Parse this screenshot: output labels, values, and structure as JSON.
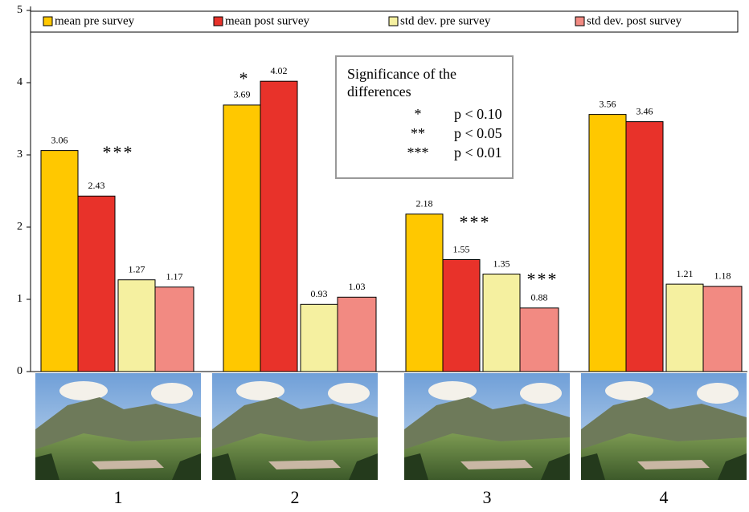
{
  "chart_data": {
    "type": "bar",
    "categories": [
      "1",
      "2",
      "3",
      "4"
    ],
    "series": [
      {
        "name": "mean pre survey",
        "color": "#ffc800",
        "values": [
          3.06,
          3.69,
          2.18,
          3.56
        ]
      },
      {
        "name": "mean post survey",
        "color": "#e8322a",
        "values": [
          2.43,
          4.02,
          1.55,
          3.46
        ]
      },
      {
        "name": "std dev. pre survey",
        "color": "#f5f0a0",
        "values": [
          1.27,
          0.93,
          1.35,
          1.21
        ]
      },
      {
        "name": "std dev. post survey",
        "color": "#f28a82",
        "values": [
          1.17,
          1.03,
          0.88,
          1.18
        ]
      }
    ],
    "ylim": [
      0,
      5
    ],
    "yticks": [
      0,
      1,
      2,
      3,
      4,
      5
    ],
    "grid": false,
    "annotations": [
      "***",
      "*",
      "***",
      "***"
    ],
    "significance_legend": {
      "title": "Significance of the differences",
      "rows": [
        {
          "symbol": "*",
          "label": "p < 0.10"
        },
        {
          "symbol": "**",
          "label": "p < 0.05"
        },
        {
          "symbol": "***",
          "label": "p < 0.01"
        }
      ]
    }
  }
}
